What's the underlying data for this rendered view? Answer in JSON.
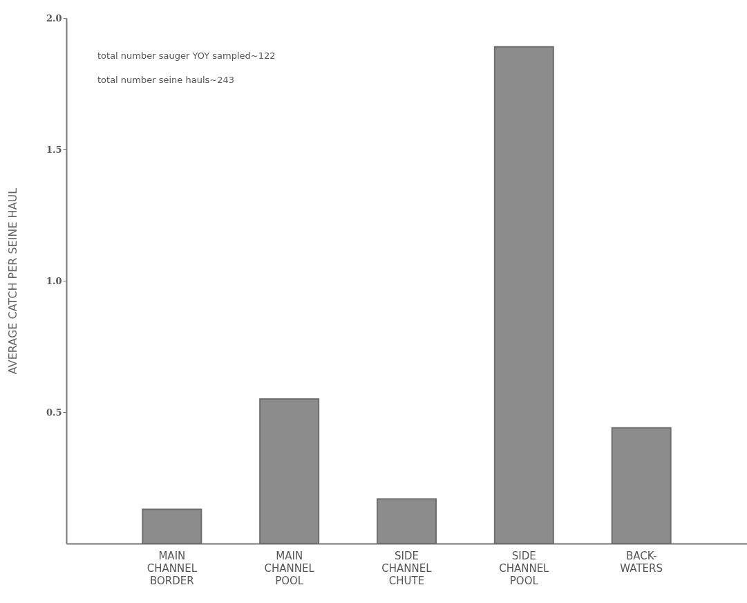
{
  "chart_data": {
    "type": "bar",
    "ylabel": "AVERAGE CATCH PER SEINE HAUL",
    "categories": [
      "MAIN\nCHANNEL\nBORDER",
      "MAIN\nCHANNEL\nPOOL",
      "SIDE\nCHANNEL\nCHUTE",
      "SIDE\nCHANNEL\nPOOL",
      "BACK-\nWATERS"
    ],
    "values": [
      0.13,
      0.55,
      0.17,
      1.89,
      0.44
    ],
    "color": "#8c8c8c",
    "ylim": [
      0,
      2.0
    ],
    "yticks": [
      0.5,
      {
        "value": 1,
        "label": "1.0"
      },
      1.5,
      {
        "value": 2,
        "label": "2.0"
      }
    ],
    "grid": false,
    "annotations": [
      "total number sauger YOY sampled~122",
      "total number seine hauls~243"
    ]
  }
}
